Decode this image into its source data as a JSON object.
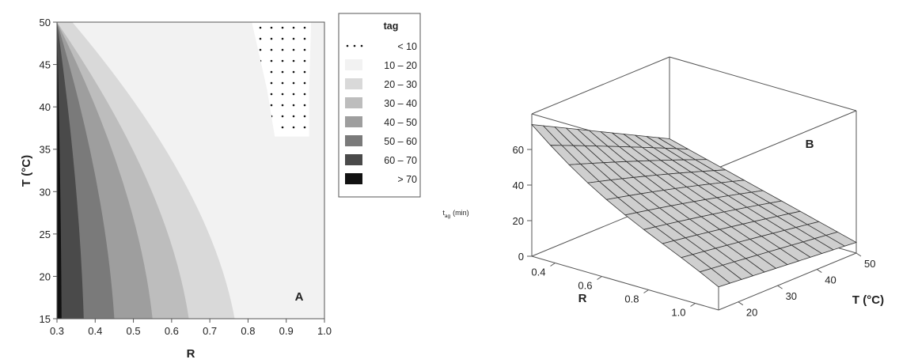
{
  "chart_data": [
    {
      "panel": "A",
      "type": "heatmap",
      "title": "",
      "xlabel": "R",
      "ylabel": "T (°C)",
      "xlim": [
        0.3,
        1.0
      ],
      "ylim": [
        15,
        50
      ],
      "xticks": [
        "0.3",
        "0.4",
        "0.5",
        "0.6",
        "0.7",
        "0.8",
        "0.9",
        "1.0"
      ],
      "yticks": [
        "15",
        "20",
        "25",
        "30",
        "35",
        "40",
        "45",
        "50"
      ],
      "legend": {
        "title": "tag",
        "placement": "right",
        "entries": [
          "< 10",
          "10 – 20",
          "20 – 30",
          "30 – 40",
          "40 – 50",
          "50 – 60",
          "60 – 70",
          "> 70"
        ],
        "colors": [
          "dots",
          "#f2f2f2",
          "#d9d9d9",
          "#bdbdbd",
          "#9e9e9e",
          "#7a7a7a",
          "#4a4a4a",
          "#111111"
        ]
      },
      "contour_levels": [
        70,
        60,
        50,
        40,
        30,
        20,
        10
      ],
      "contour_bottom_x": [
        0.312,
        0.37,
        0.45,
        0.55,
        0.645,
        0.765
      ],
      "contour_top_x": [
        0.3,
        0.3,
        0.3,
        0.3,
        0.3,
        0.34
      ],
      "dot_region_boundary": [
        {
          "R": 0.81,
          "T": 50
        },
        {
          "R": 0.85,
          "T": 42
        },
        {
          "R": 0.87,
          "T": 36.5
        },
        {
          "R": 0.96,
          "T": 36.5
        },
        {
          "R": 0.96,
          "T": 42
        },
        {
          "R": 0.965,
          "T": 50
        }
      ]
    },
    {
      "panel": "B",
      "type": "surface",
      "title": "",
      "xlabel": "R",
      "ylabel": "T (°C)",
      "zlabel": "t",
      "zlabel_sub": "ag",
      "zlabel_unit": "(min)",
      "xlim": [
        0.3,
        1.1
      ],
      "ylim": [
        15,
        50
      ],
      "zlim": [
        0,
        80
      ],
      "xticks": [
        "0.4",
        "0.6",
        "0.8",
        "1.0"
      ],
      "yticks": [
        "20",
        "30",
        "40",
        "50"
      ],
      "zticks": [
        "0",
        "20",
        "40",
        "60"
      ],
      "corner_values": [
        {
          "R": 0.3,
          "T": 15,
          "z": 74
        },
        {
          "R": 0.3,
          "T": 50,
          "z": 34
        },
        {
          "R": 1.1,
          "T": 15,
          "z": 13
        },
        {
          "R": 1.1,
          "T": 50,
          "z": 6
        }
      ]
    }
  ],
  "panel_labels": {
    "a": "A",
    "b": "B"
  }
}
